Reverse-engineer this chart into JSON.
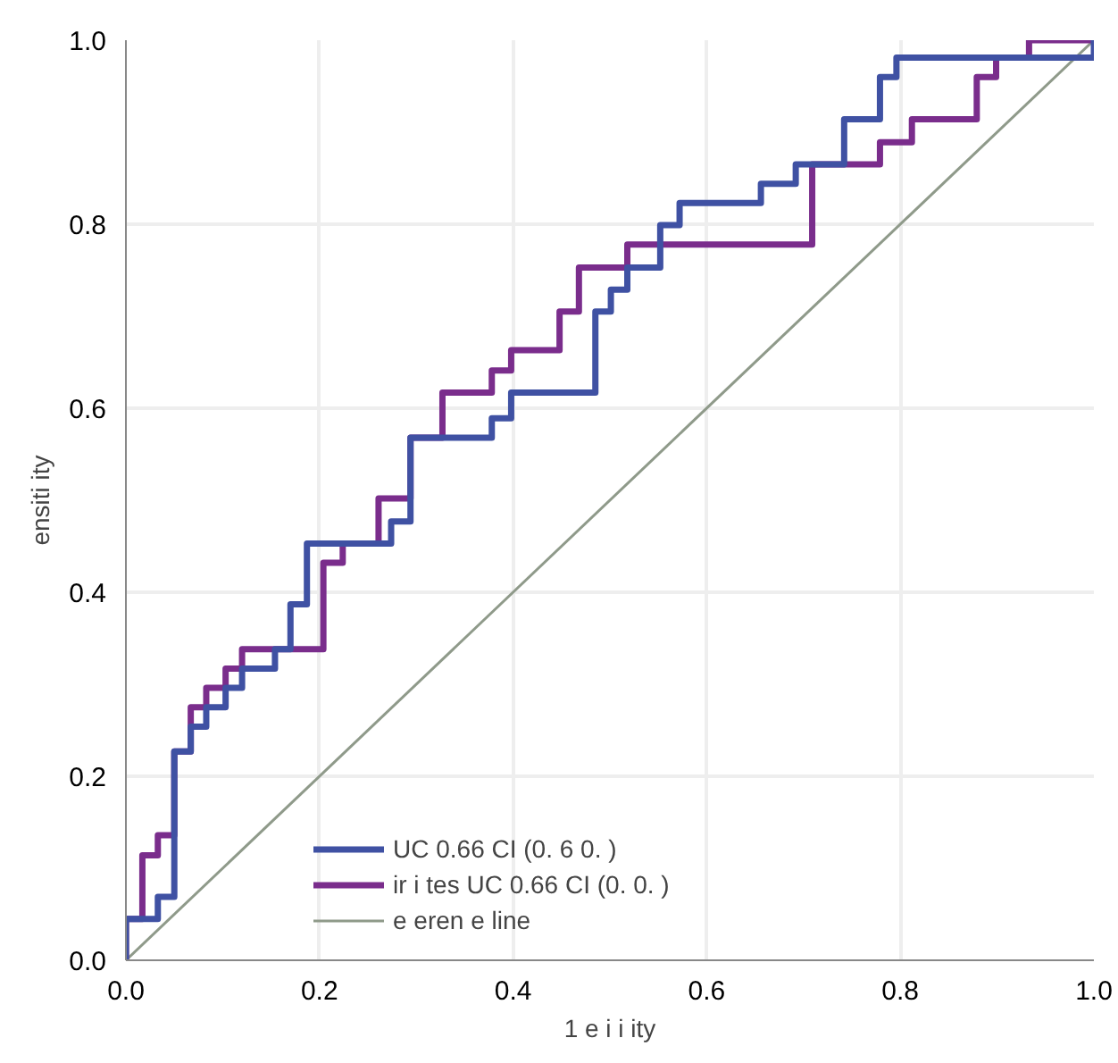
{
  "chart_data": {
    "type": "step",
    "xlabel": "1 e i i ity",
    "ylabel": "ensiti ity",
    "xlim": [
      0,
      1
    ],
    "ylim": [
      0,
      1
    ],
    "xticks": [
      {
        "value": 0,
        "label": "0.0"
      },
      0.2,
      0.4,
      0.6,
      0.8,
      {
        "value": 1,
        "label": "1.0"
      }
    ],
    "yticks": [
      {
        "value": 0,
        "label": "0.0"
      },
      0.2,
      0.4,
      0.6,
      0.8,
      {
        "value": 1,
        "label": "1.0"
      }
    ],
    "grid": true,
    "legend": "bottom",
    "series": [
      {
        "name": "UC 0.66 CI (0. 6 0. )",
        "color": "#3f51a3",
        "x": [
          0,
          0,
          0.033,
          0.05,
          0.067,
          0.083,
          0.103,
          0.12,
          0.154,
          0.17,
          0.187,
          0.274,
          0.294,
          0.378,
          0.398,
          0.485,
          0.501,
          0.518,
          0.552,
          0.572,
          0.656,
          0.692,
          0.742,
          0.779,
          0.796,
          1.0
        ],
        "values": [
          0,
          0.045,
          0.069,
          0.227,
          0.254,
          0.275,
          0.296,
          0.317,
          0.338,
          0.387,
          0.453,
          0.477,
          0.568,
          0.589,
          0.617,
          0.705,
          0.729,
          0.753,
          0.799,
          0.823,
          0.844,
          0.865,
          0.914,
          0.96,
          0.981,
          1.0
        ]
      },
      {
        "name": "ir i tes UC 0.66 CI (0. 0. )",
        "color": "#7a2d8c",
        "x": [
          0,
          0,
          0.017,
          0.033,
          0.05,
          0.067,
          0.083,
          0.103,
          0.12,
          0.204,
          0.224,
          0.261,
          0.294,
          0.327,
          0.378,
          0.398,
          0.448,
          0.468,
          0.518,
          0.709,
          0.779,
          0.812,
          0.879,
          0.899,
          0.933,
          1.0
        ],
        "values": [
          0,
          0.045,
          0.114,
          0.136,
          0.227,
          0.275,
          0.296,
          0.317,
          0.338,
          0.432,
          0.453,
          0.502,
          0.568,
          0.617,
          0.641,
          0.663,
          0.705,
          0.753,
          0.778,
          0.865,
          0.889,
          0.914,
          0.96,
          0.981,
          1.0,
          1.0
        ]
      },
      {
        "name": "e eren e line",
        "type": "line",
        "color": "#8f9a8a",
        "x": [
          0,
          1
        ],
        "values": [
          0,
          1
        ]
      }
    ]
  }
}
